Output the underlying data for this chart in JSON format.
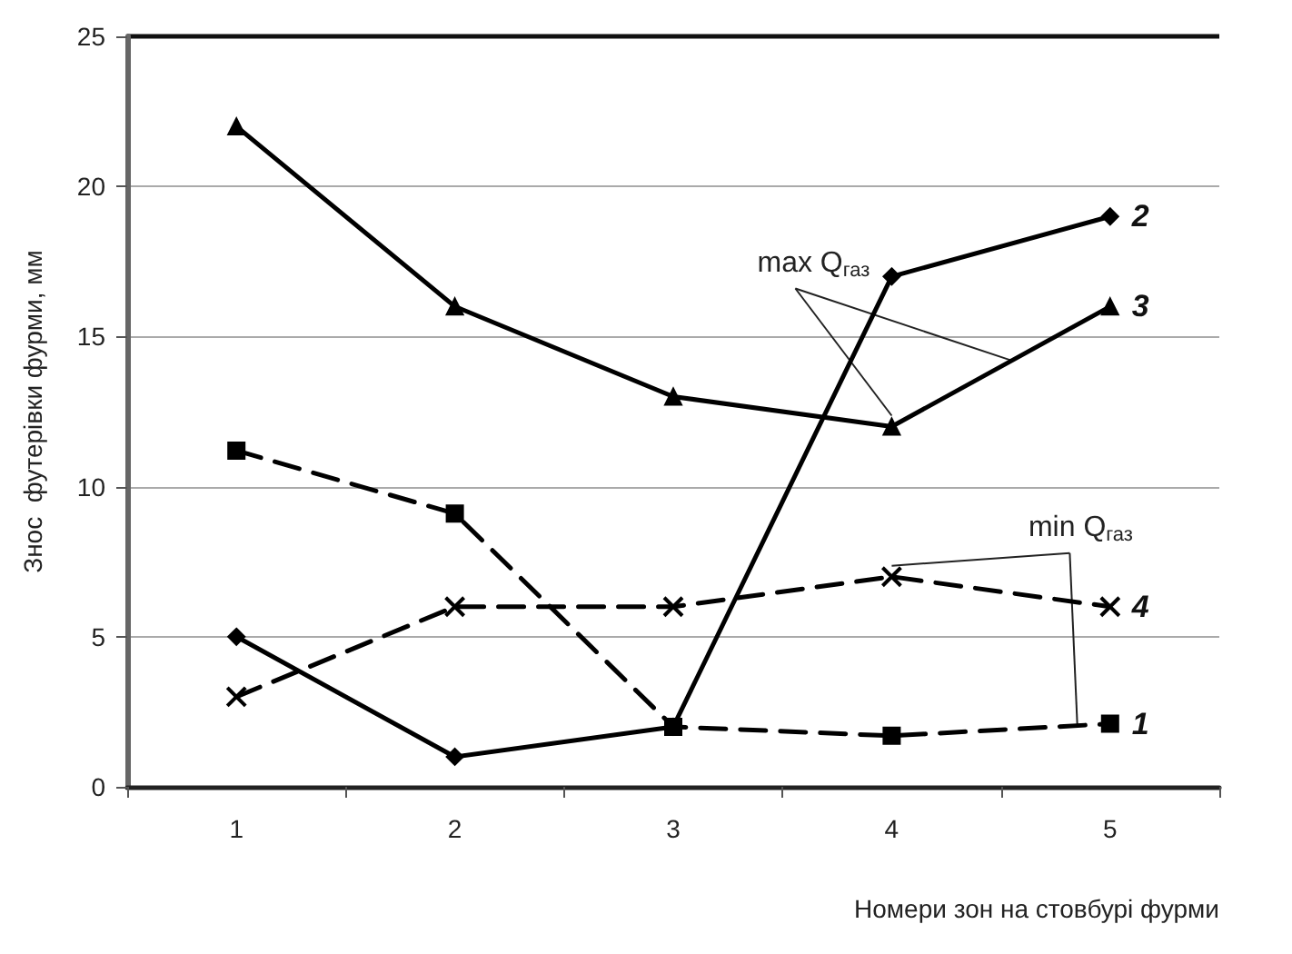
{
  "chart_data": {
    "type": "line",
    "xlabel": "Номери зон на стовбурі фурми",
    "ylabel": "Знос  футерівки фурми, мм",
    "categories": [
      "1",
      "2",
      "3",
      "4",
      "5"
    ],
    "series": [
      {
        "name": "1",
        "color": "#000000",
        "marker": "square",
        "line_style": "dashed",
        "values": [
          11.2,
          9.1,
          2,
          1.7,
          2.1
        ]
      },
      {
        "name": "2",
        "color": "#000000",
        "marker": "diamond",
        "line_style": "solid",
        "values": [
          5,
          1,
          2,
          17,
          19
        ]
      },
      {
        "name": "3",
        "color": "#000000",
        "marker": "triangle",
        "line_style": "solid",
        "values": [
          22,
          16,
          13,
          12,
          16
        ]
      },
      {
        "name": "4",
        "color": "#000000",
        "marker": "cross",
        "line_style": "dashed",
        "values": [
          3,
          6,
          6,
          7,
          6
        ]
      }
    ],
    "ylim": [
      0,
      25
    ],
    "yticks": [
      0,
      5,
      10,
      15,
      20,
      25
    ],
    "grid": "y",
    "legend": false,
    "annotations": [
      {
        "text": "max Q$_{газ}$",
        "x": "4",
        "y": 12
      },
      {
        "text": "min Q$_{газ}$",
        "x": "4",
        "y": 7
      }
    ]
  }
}
